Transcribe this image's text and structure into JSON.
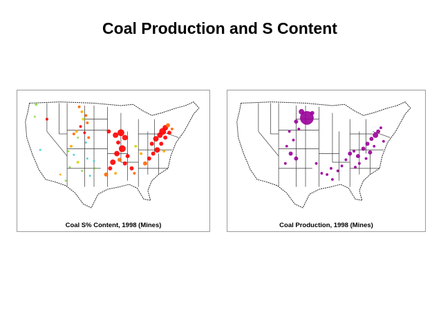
{
  "slide": {
    "title": "Coal Production and S Content"
  },
  "maps": [
    {
      "caption": "Coal S% Content, 1998 (Mines)",
      "marker_colors": [
        "#ff0000",
        "#ff6600",
        "#ffaa00",
        "#d8d800",
        "#88dd44",
        "#44cccc"
      ]
    },
    {
      "caption": "Coal Production, 1998 (Mines)",
      "marker_colors": [
        "#990099"
      ]
    }
  ]
}
